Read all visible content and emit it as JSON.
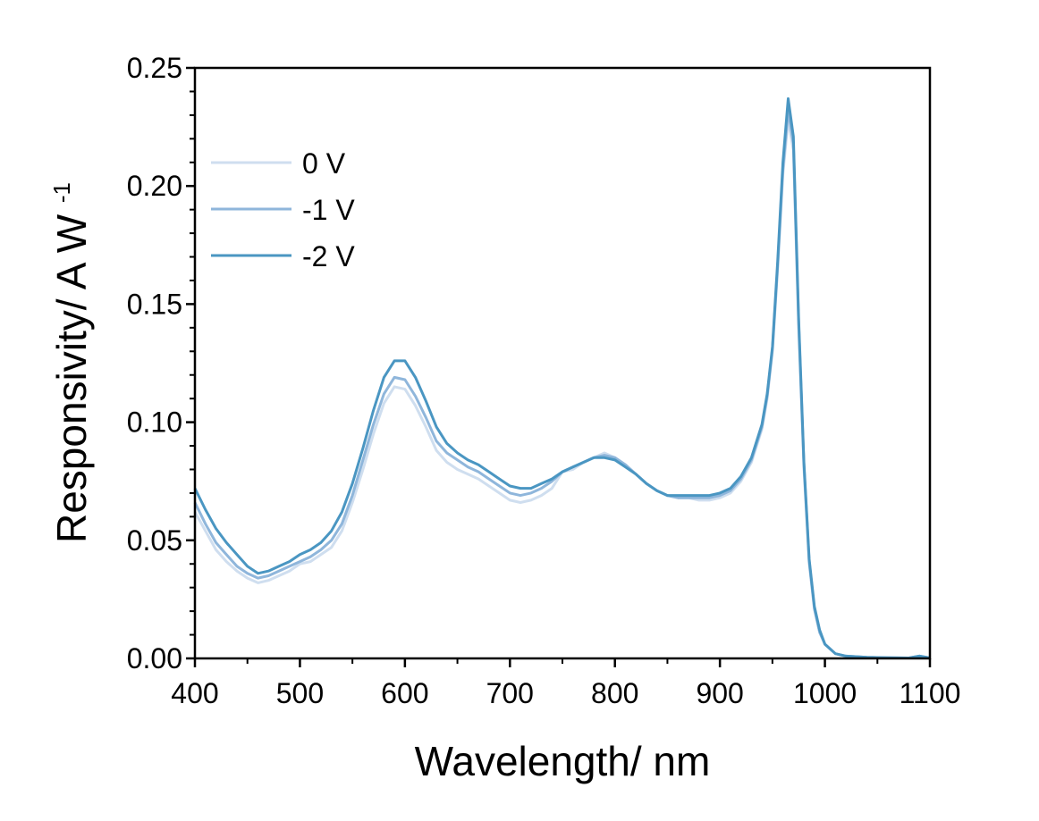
{
  "chart_data": {
    "type": "line",
    "title": "",
    "xlabel": "Wavelength/ nm",
    "ylabel_main": "Responsivity/ A W",
    "ylabel_sup": "-1",
    "xlim": [
      400,
      1100
    ],
    "ylim": [
      0,
      0.25
    ],
    "xticks": [
      "400",
      "500",
      "600",
      "700",
      "800",
      "900",
      "1000",
      "1100"
    ],
    "yticks": [
      "0.00",
      "0.05",
      "0.10",
      "0.15",
      "0.20",
      "0.25"
    ],
    "xtick_values": [
      400,
      500,
      600,
      700,
      800,
      900,
      1000,
      1100
    ],
    "ytick_values": [
      0,
      0.05,
      0.1,
      0.15,
      0.2,
      0.25
    ],
    "legend_position": "top-left",
    "x": [
      400,
      410,
      420,
      430,
      440,
      450,
      460,
      470,
      480,
      490,
      500,
      510,
      520,
      530,
      540,
      550,
      560,
      570,
      580,
      590,
      600,
      610,
      620,
      630,
      640,
      650,
      660,
      670,
      680,
      690,
      700,
      710,
      720,
      730,
      740,
      750,
      760,
      770,
      780,
      790,
      800,
      810,
      820,
      830,
      840,
      850,
      860,
      870,
      880,
      890,
      900,
      910,
      920,
      930,
      940,
      945,
      950,
      955,
      960,
      965,
      970,
      975,
      980,
      985,
      990,
      995,
      1000,
      1010,
      1020,
      1040,
      1060,
      1080,
      1090,
      1100
    ],
    "series": [
      {
        "name": "0 V",
        "color": "#cfdeef",
        "values": [
          0.062,
          0.054,
          0.046,
          0.041,
          0.037,
          0.034,
          0.032,
          0.033,
          0.035,
          0.037,
          0.04,
          0.041,
          0.044,
          0.047,
          0.054,
          0.066,
          0.08,
          0.095,
          0.108,
          0.115,
          0.114,
          0.107,
          0.098,
          0.088,
          0.083,
          0.08,
          0.078,
          0.076,
          0.073,
          0.07,
          0.067,
          0.066,
          0.067,
          0.069,
          0.072,
          0.079,
          0.08,
          0.083,
          0.085,
          0.087,
          0.085,
          0.082,
          0.078,
          0.074,
          0.071,
          0.069,
          0.068,
          0.068,
          0.067,
          0.067,
          0.068,
          0.07,
          0.075,
          0.083,
          0.097,
          0.11,
          0.13,
          0.165,
          0.205,
          0.228,
          0.215,
          0.14,
          0.08,
          0.04,
          0.021,
          0.011,
          0.006,
          0.002,
          0.001,
          0.0005,
          0.0003,
          0.0002,
          0.001,
          0.0002
        ]
      },
      {
        "name": "-1 V",
        "color": "#8fb6db",
        "values": [
          0.066,
          0.057,
          0.049,
          0.044,
          0.039,
          0.036,
          0.034,
          0.035,
          0.037,
          0.039,
          0.041,
          0.043,
          0.046,
          0.05,
          0.057,
          0.069,
          0.084,
          0.099,
          0.112,
          0.119,
          0.118,
          0.111,
          0.102,
          0.092,
          0.087,
          0.084,
          0.081,
          0.079,
          0.076,
          0.073,
          0.07,
          0.069,
          0.07,
          0.072,
          0.075,
          0.079,
          0.081,
          0.083,
          0.085,
          0.086,
          0.085,
          0.082,
          0.078,
          0.074,
          0.071,
          0.069,
          0.068,
          0.068,
          0.068,
          0.068,
          0.069,
          0.071,
          0.076,
          0.084,
          0.098,
          0.111,
          0.131,
          0.166,
          0.207,
          0.232,
          0.218,
          0.142,
          0.082,
          0.041,
          0.021,
          0.011,
          0.006,
          0.002,
          0.001,
          0.0005,
          0.0003,
          0.0002,
          0.001,
          0.0002
        ]
      },
      {
        "name": "-2 V",
        "color": "#4a96c2",
        "values": [
          0.072,
          0.063,
          0.055,
          0.049,
          0.044,
          0.039,
          0.036,
          0.037,
          0.039,
          0.041,
          0.044,
          0.046,
          0.049,
          0.054,
          0.062,
          0.074,
          0.089,
          0.105,
          0.119,
          0.126,
          0.126,
          0.119,
          0.109,
          0.098,
          0.091,
          0.087,
          0.084,
          0.082,
          0.079,
          0.076,
          0.073,
          0.072,
          0.072,
          0.074,
          0.076,
          0.079,
          0.081,
          0.083,
          0.085,
          0.085,
          0.084,
          0.081,
          0.078,
          0.074,
          0.071,
          0.069,
          0.069,
          0.069,
          0.069,
          0.069,
          0.07,
          0.072,
          0.077,
          0.085,
          0.099,
          0.112,
          0.132,
          0.168,
          0.21,
          0.237,
          0.221,
          0.144,
          0.083,
          0.042,
          0.022,
          0.012,
          0.006,
          0.002,
          0.001,
          0.0005,
          0.0003,
          0.0002,
          0.001,
          0.0002
        ]
      }
    ]
  }
}
